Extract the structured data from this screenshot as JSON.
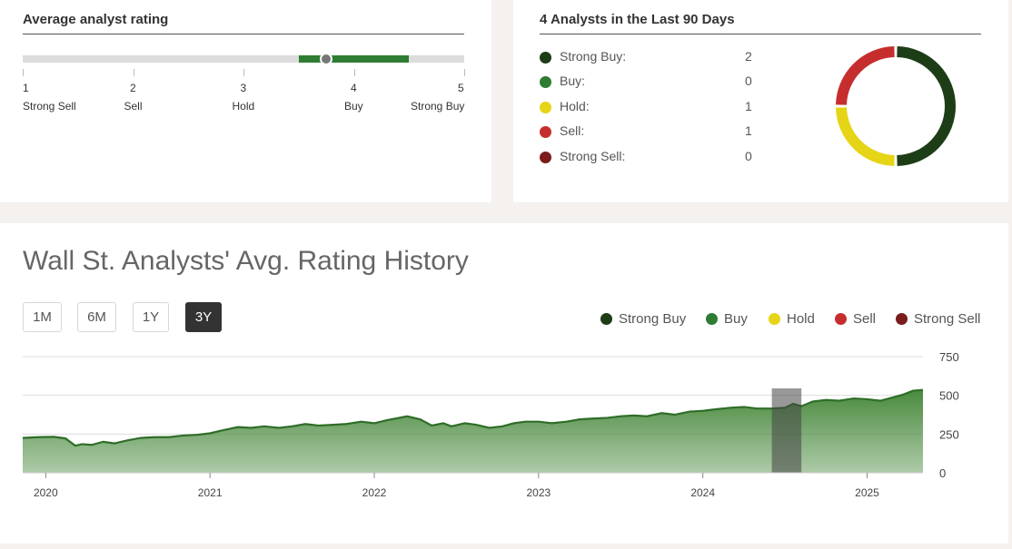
{
  "average_rating": {
    "heading": "Average analyst rating",
    "scale": [
      {
        "num": "1",
        "label": "Strong Sell"
      },
      {
        "num": "2",
        "label": "Sell"
      },
      {
        "num": "3",
        "label": "Hold"
      },
      {
        "num": "4",
        "label": "Buy"
      },
      {
        "num": "5",
        "label": "Strong Buy"
      }
    ],
    "marker_value": 3.75,
    "range_low": 3.5,
    "range_high": 4.5,
    "range_color": "#2e7d32"
  },
  "distribution": {
    "heading": "4 Analysts in the Last 90 Days",
    "items": [
      {
        "label": "Strong Buy:",
        "count": "2",
        "value": 2,
        "color": "#1d3d17"
      },
      {
        "label": "Buy:",
        "count": "0",
        "value": 0,
        "color": "#2e7d32"
      },
      {
        "label": "Hold:",
        "count": "1",
        "value": 1,
        "color": "#e6d416"
      },
      {
        "label": "Sell:",
        "count": "1",
        "value": 1,
        "color": "#c62e2e"
      },
      {
        "label": "Strong Sell:",
        "count": "0",
        "value": 0,
        "color": "#7a1c1c"
      }
    ]
  },
  "history": {
    "title": "Wall St. Analysts' Avg. Rating History",
    "ranges": [
      {
        "label": "1M",
        "active": false
      },
      {
        "label": "6M",
        "active": false
      },
      {
        "label": "1Y",
        "active": false
      },
      {
        "label": "3Y",
        "active": true
      }
    ],
    "legend": [
      {
        "label": "Strong Buy",
        "color": "#1d3d17"
      },
      {
        "label": "Buy",
        "color": "#2e7d32"
      },
      {
        "label": "Hold",
        "color": "#e6d416"
      },
      {
        "label": "Sell",
        "color": "#c62e2e"
      },
      {
        "label": "Strong Sell",
        "color": "#7a1c1c"
      }
    ]
  },
  "chart_data": {
    "type": "area",
    "title": "",
    "xlabel": "",
    "ylabel": "",
    "ylim": [
      0,
      750
    ],
    "yticks": [
      "750",
      "500",
      "250",
      "0"
    ],
    "ytick_values": [
      750,
      500,
      250,
      0
    ],
    "xticks": [
      "2020",
      "2021",
      "2022",
      "2023",
      "2024",
      "2025"
    ],
    "xtick_values": [
      2020,
      2021,
      2022,
      2023,
      2024,
      2025
    ],
    "xlim": [
      2019.86,
      2025.34
    ],
    "grid": true,
    "fill_color": "#4a8a3e",
    "line_color": "#2f6e28",
    "highlight_band": {
      "from": 2024.42,
      "to": 2024.6,
      "color": "#444444"
    },
    "series": [
      {
        "x": [
          2019.86,
          2019.95,
          2020.05,
          2020.12,
          2020.18,
          2020.22,
          2020.28,
          2020.35,
          2020.42,
          2020.5,
          2020.58,
          2020.66,
          2020.75,
          2020.83,
          2020.92,
          2021.0,
          2021.08,
          2021.17,
          2021.25,
          2021.33,
          2021.42,
          2021.5,
          2021.58,
          2021.66,
          2021.75,
          2021.83,
          2021.92,
          2022.0,
          2022.08,
          2022.13,
          2022.2,
          2022.28,
          2022.35,
          2022.42,
          2022.47,
          2022.55,
          2022.62,
          2022.7,
          2022.78,
          2022.85,
          2022.92,
          2023.0,
          2023.08,
          2023.17,
          2023.25,
          2023.33,
          2023.42,
          2023.5,
          2023.58,
          2023.66,
          2023.75,
          2023.83,
          2023.92,
          2024.0,
          2024.08,
          2024.17,
          2024.25,
          2024.33,
          2024.42,
          2024.5,
          2024.55,
          2024.6,
          2024.67,
          2024.75,
          2024.83,
          2024.92,
          2025.0,
          2025.08,
          2025.17,
          2025.22,
          2025.28,
          2025.34
        ],
        "y": [
          225,
          230,
          232,
          222,
          175,
          185,
          180,
          200,
          190,
          210,
          225,
          230,
          230,
          240,
          245,
          255,
          275,
          295,
          290,
          300,
          290,
          300,
          315,
          305,
          310,
          315,
          330,
          320,
          340,
          350,
          365,
          345,
          305,
          320,
          300,
          320,
          310,
          290,
          300,
          320,
          330,
          330,
          320,
          330,
          345,
          350,
          355,
          365,
          370,
          365,
          385,
          375,
          395,
          400,
          410,
          420,
          425,
          415,
          415,
          420,
          445,
          430,
          460,
          470,
          465,
          480,
          475,
          465,
          490,
          505,
          530,
          535
        ]
      }
    ]
  }
}
